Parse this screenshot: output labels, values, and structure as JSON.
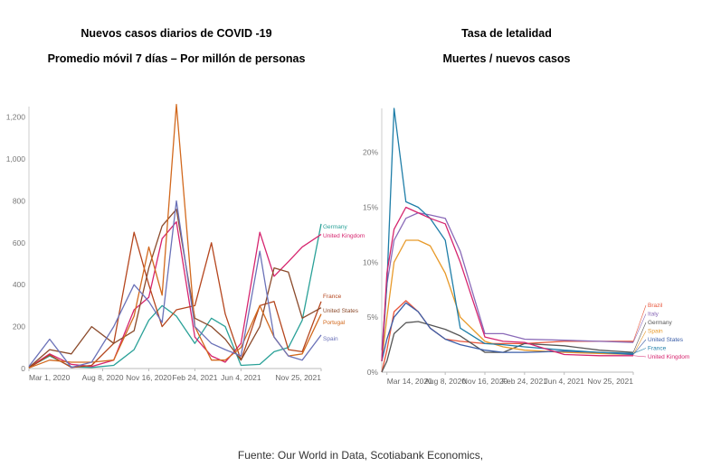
{
  "titles": {
    "left_line1": "Nuevos casos diarios de COVID -19",
    "left_line2": "Promedio móvil 7 días – Por millón de personas",
    "right_line1": "Tasa de letalidad",
    "right_line2": "Muertes / nuevos casos"
  },
  "source": "Fuente:  Our World in Data, Scotiabank Economics,",
  "chart_data": [
    {
      "type": "line",
      "title": "Nuevos casos diarios de COVID -19",
      "subtitle": "Promedio móvil 7 días – Por millón de personas",
      "xlabel": "",
      "ylabel": "",
      "x_ticks": [
        "Mar 1, 2020",
        "Aug 8, 2020",
        "Nov 16, 2020",
        "Feb 24, 2021",
        "Jun 4, 2021",
        "Nov 25, 2021"
      ],
      "y_ticks": [
        "0",
        "200",
        "400",
        "600",
        "800",
        "1,000",
        "1,200"
      ],
      "ylim": [
        0,
        1250
      ],
      "grid": false,
      "x": [
        "2020-03-01",
        "2020-04-15",
        "2020-06-01",
        "2020-07-15",
        "2020-09-01",
        "2020-10-15",
        "2020-11-16",
        "2020-12-15",
        "2021-01-15",
        "2021-02-24",
        "2021-04-01",
        "2021-05-01",
        "2021-06-04",
        "2021-07-15",
        "2021-08-15",
        "2021-09-15",
        "2021-10-15",
        "2021-11-25"
      ],
      "series": [
        {
          "name": "Germany",
          "color": "#2aa198",
          "values": [
            5,
            60,
            8,
            5,
            15,
            90,
            230,
            300,
            250,
            120,
            240,
            200,
            15,
            20,
            80,
            100,
            230,
            690
          ]
        },
        {
          "name": "United Kingdom",
          "color": "#d6246e",
          "values": [
            5,
            70,
            20,
            10,
            40,
            280,
            340,
            620,
            700,
            150,
            60,
            30,
            120,
            650,
            440,
            510,
            580,
            640
          ]
        },
        {
          "name": "France",
          "color": "#b5461e",
          "values": [
            3,
            65,
            5,
            15,
            120,
            650,
            400,
            200,
            280,
            300,
            600,
            260,
            40,
            300,
            320,
            90,
            80,
            320
          ]
        },
        {
          "name": "United States",
          "color": "#8b4a2b",
          "values": [
            5,
            90,
            70,
            200,
            120,
            180,
            480,
            680,
            760,
            240,
            200,
            140,
            40,
            200,
            480,
            460,
            240,
            290
          ]
        },
        {
          "name": "Portugal",
          "color": "#d2691e",
          "values": [
            3,
            40,
            30,
            30,
            40,
            250,
            580,
            350,
            1260,
            200,
            40,
            40,
            100,
            300,
            150,
            60,
            70,
            260
          ]
        },
        {
          "name": "Spain",
          "color": "#6b72b8",
          "values": [
            10,
            140,
            5,
            30,
            200,
            400,
            320,
            220,
            800,
            200,
            120,
            90,
            60,
            560,
            150,
            60,
            40,
            160
          ]
        }
      ]
    },
    {
      "type": "line",
      "title": "Tasa de letalidad",
      "subtitle": "Muertes / nuevos casos",
      "xlabel": "",
      "ylabel": "",
      "x_ticks": [
        "Mar 14, 2020",
        "Aug 8, 2020",
        "Nov 16, 2020",
        "Feb 24, 2021",
        "Jun 4, 2021",
        "Nov 25, 2021"
      ],
      "y_ticks": [
        "0%",
        "5%",
        "10%",
        "15%",
        "20%"
      ],
      "ylim": [
        0,
        24
      ],
      "grid": false,
      "x": [
        "2020-03-01",
        "2020-03-14",
        "2020-04-01",
        "2020-05-01",
        "2020-06-01",
        "2020-07-01",
        "2020-08-08",
        "2020-09-15",
        "2020-11-16",
        "2021-01-01",
        "2021-02-24",
        "2021-06-04",
        "2021-09-01",
        "2021-11-25"
      ],
      "series": [
        {
          "name": "Brazil",
          "color": "#e8553a",
          "values": [
            0,
            2,
            5.5,
            6.5,
            5.5,
            4,
            3,
            2.8,
            2.6,
            2.6,
            2.6,
            2.8,
            2.8,
            2.8
          ]
        },
        {
          "name": "Italy",
          "color": "#8a6ab8",
          "values": [
            2,
            8,
            12,
            14,
            14.5,
            14.3,
            14,
            11,
            3.5,
            3.5,
            3,
            2.9,
            2.8,
            2.7
          ]
        },
        {
          "name": "Germany",
          "color": "#555555",
          "values": [
            0,
            1,
            3.5,
            4.5,
            4.6,
            4.3,
            3.9,
            3.3,
            1.8,
            1.8,
            2.6,
            2.4,
            2,
            1.8
          ]
        },
        {
          "name": "Spain",
          "color": "#e89a2a",
          "values": [
            1,
            5,
            10,
            12,
            12,
            11.5,
            9,
            5,
            2.8,
            2.3,
            2,
            1.8,
            1.7,
            1.6
          ]
        },
        {
          "name": "United States",
          "color": "#3b5ea8",
          "values": [
            1,
            3,
            5,
            6.3,
            5.5,
            4,
            3,
            2.5,
            2,
            1.8,
            1.8,
            1.9,
            1.8,
            1.6
          ]
        },
        {
          "name": "France",
          "color": "#1f7ea8",
          "values": [
            1,
            8,
            24,
            15.5,
            15,
            14,
            12,
            4,
            2.6,
            2.5,
            2.3,
            2,
            1.8,
            1.7
          ]
        },
        {
          "name": "United Kingdom",
          "color": "#d6246e",
          "values": [
            1,
            9,
            13,
            15,
            14.5,
            14,
            13.5,
            10,
            3.2,
            2.8,
            2.7,
            1.6,
            1.5,
            1.5
          ]
        }
      ]
    }
  ]
}
